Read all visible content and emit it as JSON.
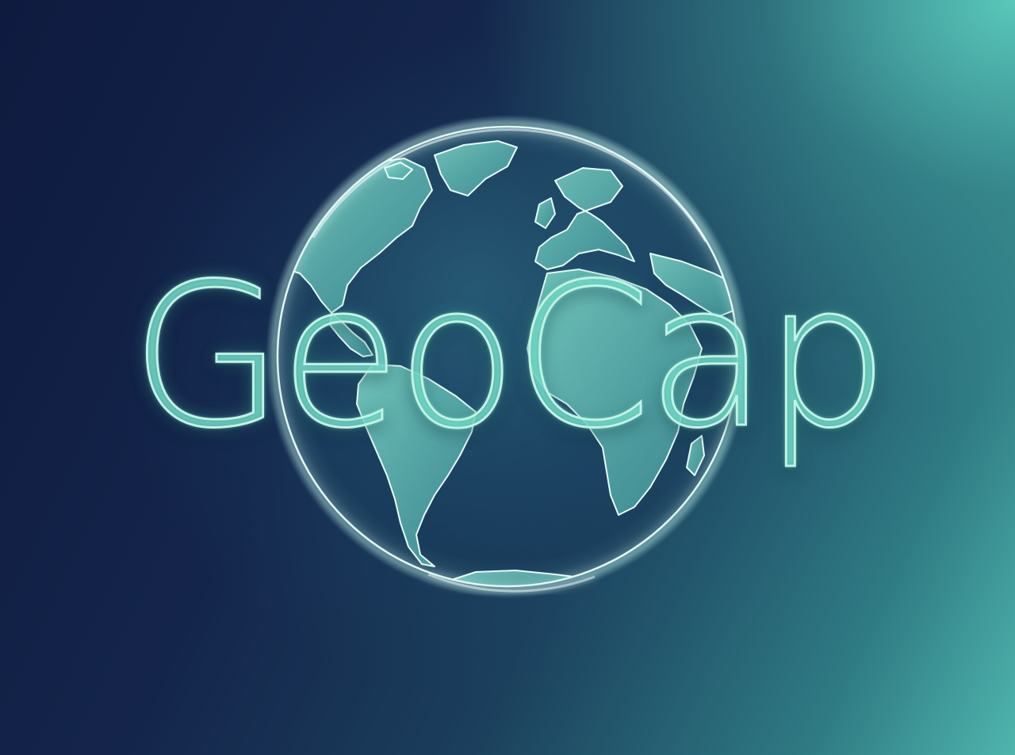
{
  "brand": {
    "name": "GeoCap"
  },
  "colors": {
    "background_dark": "#0f1a3f",
    "background_teal": "#4fb5ad",
    "globe_outline": "#dff8f2",
    "land_fill": "#5fc2b5",
    "text_fill": "#5cc9b6",
    "text_stroke": "#bff3e6"
  },
  "icons": {
    "globe": "globe-icon"
  }
}
